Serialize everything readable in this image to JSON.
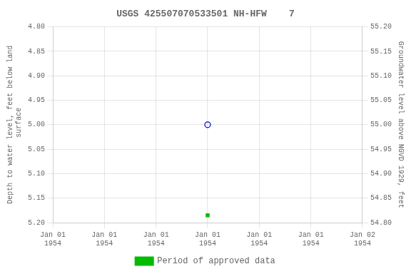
{
  "chart_data": {
    "type": "scatter",
    "title": "USGS 425507070533501 NH-HFW    7",
    "ylabel": "Depth to water level, feet below land\n surface",
    "y2label": "Groundwater level above NGVD 1929, feet",
    "categories": [
      "Jan 01\n1954",
      "Jan 01\n1954",
      "Jan 01\n1954",
      "Jan 01\n1954",
      "Jan 01\n1954",
      "Jan 01\n1954",
      "Jan 02\n1954"
    ],
    "series": [
      {
        "values": [
          null,
          null,
          null,
          5.0,
          null,
          null,
          null
        ],
        "color": "#0000cc",
        "marker": "circle-open"
      },
      {
        "name": "Period of approved data",
        "values": [
          null,
          null,
          null,
          5.185,
          null,
          null,
          null
        ],
        "color": "#00bb00",
        "marker": "square"
      }
    ],
    "ylim": [
      5.2,
      4.8
    ],
    "yticks": [
      {
        "value": 4.8,
        "label": "4.80"
      },
      {
        "value": 4.85,
        "label": "4.85"
      },
      {
        "value": 4.9,
        "label": "4.90"
      },
      {
        "value": 4.95,
        "label": "4.95"
      },
      {
        "value": 5.0,
        "label": "5.00"
      },
      {
        "value": 5.05,
        "label": "5.05"
      },
      {
        "value": 5.1,
        "label": "5.10"
      },
      {
        "value": 5.15,
        "label": "5.15"
      },
      {
        "value": 5.2,
        "label": "5.20"
      }
    ],
    "y2lim": [
      54.8,
      55.2
    ],
    "y2ticks": [
      {
        "value": 54.8,
        "label": "54.80"
      },
      {
        "value": 54.85,
        "label": "54.85"
      },
      {
        "value": 54.9,
        "label": "54.90"
      },
      {
        "value": 54.95,
        "label": "54.95"
      },
      {
        "value": 55.0,
        "label": "55.00"
      },
      {
        "value": 55.05,
        "label": "55.05"
      },
      {
        "value": 55.1,
        "label": "55.10"
      },
      {
        "value": 55.15,
        "label": "55.15"
      },
      {
        "value": 55.2,
        "label": "55.20"
      }
    ],
    "grid": true,
    "legend": "bottom"
  }
}
